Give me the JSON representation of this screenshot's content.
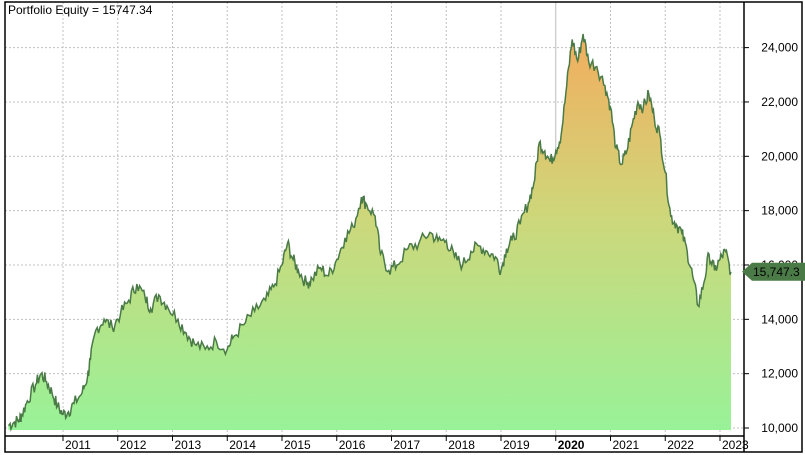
{
  "chart_data": {
    "type": "area",
    "title": "Portfolio Equity = 15747.34",
    "series": [
      {
        "name": "Portfolio Equity",
        "last_value": 15747.34,
        "last_value_label": "15,747.3",
        "line_color": "#4a7a46",
        "fill_gradient": {
          "high": "#f0b060",
          "mid": "#c8d878",
          "low": "#98f098"
        },
        "points": [
          [
            2010.0,
            10100
          ],
          [
            2010.1,
            10200
          ],
          [
            2010.2,
            10300
          ],
          [
            2010.25,
            10500
          ],
          [
            2010.35,
            11000
          ],
          [
            2010.5,
            11600
          ],
          [
            2010.6,
            12000
          ],
          [
            2010.7,
            11700
          ],
          [
            2010.8,
            11300
          ],
          [
            2010.9,
            10800
          ],
          [
            2011.0,
            10500
          ],
          [
            2011.1,
            10600
          ],
          [
            2011.2,
            10900
          ],
          [
            2011.35,
            11300
          ],
          [
            2011.45,
            11900
          ],
          [
            2011.5,
            12500
          ],
          [
            2011.6,
            13600
          ],
          [
            2011.75,
            14000
          ],
          [
            2011.9,
            13700
          ],
          [
            2012.05,
            14200
          ],
          [
            2012.2,
            14700
          ],
          [
            2012.35,
            15300
          ],
          [
            2012.5,
            14800
          ],
          [
            2012.6,
            14400
          ],
          [
            2012.75,
            14900
          ],
          [
            2012.9,
            14500
          ],
          [
            2013.1,
            14000
          ],
          [
            2013.25,
            13500
          ],
          [
            2013.4,
            13100
          ],
          [
            2013.6,
            12900
          ],
          [
            2013.8,
            13200
          ],
          [
            2014.0,
            12900
          ],
          [
            2014.1,
            13300
          ],
          [
            2014.3,
            13800
          ],
          [
            2014.5,
            14300
          ],
          [
            2014.7,
            14700
          ],
          [
            2014.85,
            15200
          ],
          [
            2015.0,
            16000
          ],
          [
            2015.1,
            16800
          ],
          [
            2015.2,
            16200
          ],
          [
            2015.3,
            15800
          ],
          [
            2015.45,
            15300
          ],
          [
            2015.55,
            15500
          ],
          [
            2015.7,
            15900
          ],
          [
            2015.85,
            15600
          ],
          [
            2016.0,
            16200
          ],
          [
            2016.15,
            17000
          ],
          [
            2016.3,
            17400
          ],
          [
            2016.45,
            18500
          ],
          [
            2016.55,
            18200
          ],
          [
            2016.7,
            17800
          ],
          [
            2016.8,
            16400
          ],
          [
            2016.95,
            15800
          ],
          [
            2017.1,
            16000
          ],
          [
            2017.3,
            16600
          ],
          [
            2017.5,
            16800
          ],
          [
            2017.7,
            17200
          ],
          [
            2017.85,
            16900
          ],
          [
            2018.0,
            16900
          ],
          [
            2018.15,
            16300
          ],
          [
            2018.3,
            16000
          ],
          [
            2018.45,
            16500
          ],
          [
            2018.6,
            16700
          ],
          [
            2018.75,
            16500
          ],
          [
            2018.9,
            16300
          ],
          [
            2019.0,
            15800
          ],
          [
            2019.1,
            16600
          ],
          [
            2019.2,
            16900
          ],
          [
            2019.35,
            17500
          ],
          [
            2019.5,
            18300
          ],
          [
            2019.6,
            19000
          ],
          [
            2019.7,
            20500
          ],
          [
            2019.8,
            20200
          ],
          [
            2019.9,
            19800
          ],
          [
            2020.0,
            20200
          ],
          [
            2020.1,
            20800
          ],
          [
            2020.2,
            22600
          ],
          [
            2020.3,
            24300
          ],
          [
            2020.4,
            23500
          ],
          [
            2020.5,
            24500
          ],
          [
            2020.6,
            23500
          ],
          [
            2020.75,
            23300
          ],
          [
            2020.9,
            22600
          ],
          [
            2021.0,
            21800
          ],
          [
            2021.1,
            20300
          ],
          [
            2021.2,
            19700
          ],
          [
            2021.3,
            20200
          ],
          [
            2021.4,
            21200
          ],
          [
            2021.5,
            22000
          ],
          [
            2021.6,
            21800
          ],
          [
            2021.7,
            22300
          ],
          [
            2021.8,
            21400
          ],
          [
            2021.9,
            20800
          ],
          [
            2022.0,
            19400
          ],
          [
            2022.1,
            17800
          ],
          [
            2022.2,
            17500
          ],
          [
            2022.3,
            17200
          ],
          [
            2022.4,
            16500
          ],
          [
            2022.5,
            15600
          ],
          [
            2022.6,
            14500
          ],
          [
            2022.7,
            15300
          ],
          [
            2022.8,
            16400
          ],
          [
            2022.9,
            15800
          ],
          [
            2023.0,
            16200
          ],
          [
            2023.1,
            16500
          ],
          [
            2023.2,
            15747
          ]
        ]
      }
    ],
    "xlabel": "",
    "ylabel": "",
    "x_tick_labels": [
      "2011",
      "2012",
      "2013",
      "2014",
      "2015",
      "2016",
      "2017",
      "2018",
      "2019",
      "2020",
      "2021",
      "2022",
      "2023"
    ],
    "x_tick_bold": "2020",
    "y_tick_labels": [
      "24,000",
      "22,000",
      "20,000",
      "18,000",
      "16,000",
      "14,000",
      "12,000",
      "10,000"
    ],
    "y_tick_values": [
      24000,
      22000,
      20000,
      18000,
      16000,
      14000,
      12000,
      10000
    ],
    "ylim": [
      9700,
      25500
    ],
    "xlim": [
      2010.0,
      2023.25
    ],
    "grid": true,
    "legend": "none",
    "axis_position": "right"
  }
}
